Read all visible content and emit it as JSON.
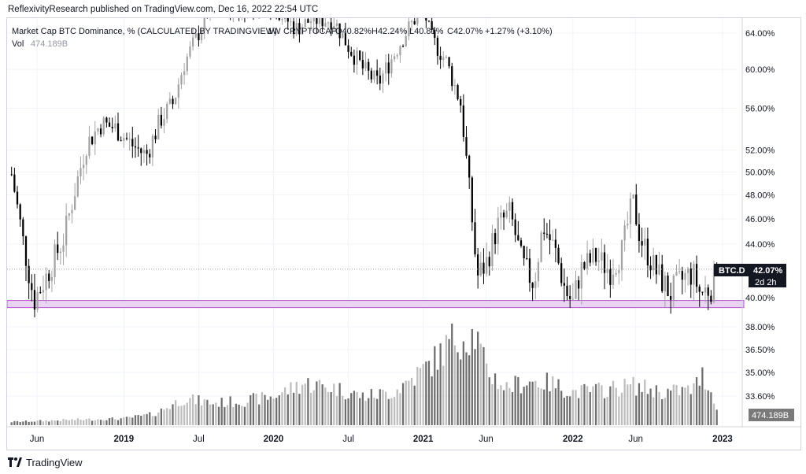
{
  "header": {
    "published_line": "ReflexivityResearch published on TradingView.com, Dec 16, 2022 22:54 UTC"
  },
  "legend": {
    "symbol_line": "Market Cap BTC Dominance, % (CALCULATED BY TRADINGVIEW)",
    "interval": "1W",
    "exchange": "CRYPTOCAP",
    "open": "O40.82%",
    "high": "H42.24%",
    "low": "L40.81%",
    "close": "C42.07%",
    "change": "+1.27% (+3.10%)",
    "vol_label": "Vol",
    "vol_value": "474.189B"
  },
  "price_badge": {
    "symbol": "BTC.D",
    "value": "42.07%",
    "countdown": "2d 2h"
  },
  "volume_badge": {
    "value": "474.189B"
  },
  "footer": {
    "brand": "TradingView"
  },
  "colors": {
    "up": "#a3a3a3",
    "down": "#000000",
    "vol_up": "#bdbdbd",
    "vol_down": "#6e6e6e",
    "zone_fill": "#e9d5f2",
    "zone_stroke": "#b257c8"
  },
  "chart_data": {
    "type": "candlestick",
    "title": "Market Cap BTC Dominance, % (CALCULATED BY TRADINGVIEW)",
    "interval": "1W",
    "scale": "log",
    "price_axis_labels": [
      "64.00%",
      "60.00%",
      "56.00%",
      "52.00%",
      "50.00%",
      "48.00%",
      "46.00%",
      "44.00%",
      "40.00%",
      "38.00%",
      "36.50%",
      "35.00%",
      "33.60%"
    ],
    "price_ticks": [
      64,
      60,
      56,
      52,
      50,
      48,
      46,
      44,
      40,
      38,
      36.5,
      35,
      33.6
    ],
    "time_axis_labels": [
      "Jun",
      "2019",
      "Jul",
      "2020",
      "Jul",
      "2021",
      "Jun",
      "2022",
      "Jun",
      "2023"
    ],
    "current_price": 42.07,
    "support_zone": [
      39.3,
      39.8
    ],
    "price_path": [
      [
        2018.25,
        49.8
      ],
      [
        2018.33,
        44.0
      ],
      [
        2018.4,
        39.8
      ],
      [
        2018.48,
        41.5
      ],
      [
        2018.6,
        44.5
      ],
      [
        2018.75,
        52.5
      ],
      [
        2018.85,
        54.5
      ],
      [
        2018.95,
        54.0
      ],
      [
        2019.05,
        52.5
      ],
      [
        2019.15,
        51.5
      ],
      [
        2019.25,
        55.0
      ],
      [
        2019.33,
        56.5
      ],
      [
        2019.4,
        60.5
      ],
      [
        2019.5,
        64.0
      ],
      [
        2019.6,
        68.0
      ],
      [
        2019.75,
        66.5
      ],
      [
        2019.9,
        67.5
      ],
      [
        2020.0,
        67.0
      ],
      [
        2020.15,
        64.5
      ],
      [
        2020.25,
        65.5
      ],
      [
        2020.4,
        65.5
      ],
      [
        2020.5,
        62.5
      ],
      [
        2020.6,
        60.0
      ],
      [
        2020.7,
        58.5
      ],
      [
        2020.8,
        61.5
      ],
      [
        2020.9,
        64.5
      ],
      [
        2021.0,
        67.0
      ],
      [
        2021.05,
        63.5
      ],
      [
        2021.15,
        61.0
      ],
      [
        2021.25,
        56.5
      ],
      [
        2021.3,
        49.5
      ],
      [
        2021.36,
        41.5
      ],
      [
        2021.42,
        42.5
      ],
      [
        2021.5,
        45.5
      ],
      [
        2021.58,
        46.5
      ],
      [
        2021.66,
        42.5
      ],
      [
        2021.74,
        41.0
      ],
      [
        2021.8,
        45.5
      ],
      [
        2021.88,
        43.5
      ],
      [
        2021.95,
        40.5
      ],
      [
        2022.0,
        39.6
      ],
      [
        2022.05,
        42.0
      ],
      [
        2022.15,
        43.0
      ],
      [
        2022.25,
        42.0
      ],
      [
        2022.33,
        43.5
      ],
      [
        2022.4,
        47.5
      ],
      [
        2022.45,
        44.5
      ],
      [
        2022.55,
        42.0
      ],
      [
        2022.65,
        40.3
      ],
      [
        2022.75,
        41.5
      ],
      [
        2022.8,
        41.8
      ],
      [
        2022.85,
        40.3
      ],
      [
        2022.93,
        40.8
      ],
      [
        2022.96,
        42.07
      ]
    ],
    "volume_path": [
      [
        2018.25,
        0.03
      ],
      [
        2018.7,
        0.05
      ],
      [
        2019.0,
        0.06
      ],
      [
        2019.2,
        0.1
      ],
      [
        2019.4,
        0.24
      ],
      [
        2019.6,
        0.2
      ],
      [
        2019.8,
        0.22
      ],
      [
        2020.0,
        0.26
      ],
      [
        2020.2,
        0.38
      ],
      [
        2020.4,
        0.34
      ],
      [
        2020.6,
        0.26
      ],
      [
        2020.8,
        0.3
      ],
      [
        2021.0,
        0.5
      ],
      [
        2021.1,
        0.62
      ],
      [
        2021.2,
        0.78
      ],
      [
        2021.35,
        0.82
      ],
      [
        2021.42,
        0.5
      ],
      [
        2021.55,
        0.34
      ],
      [
        2021.7,
        0.4
      ],
      [
        2021.85,
        0.38
      ],
      [
        2022.0,
        0.3
      ],
      [
        2022.2,
        0.32
      ],
      [
        2022.4,
        0.36
      ],
      [
        2022.6,
        0.3
      ],
      [
        2022.8,
        0.32
      ],
      [
        2022.87,
        0.46
      ],
      [
        2022.96,
        0.18
      ]
    ]
  }
}
